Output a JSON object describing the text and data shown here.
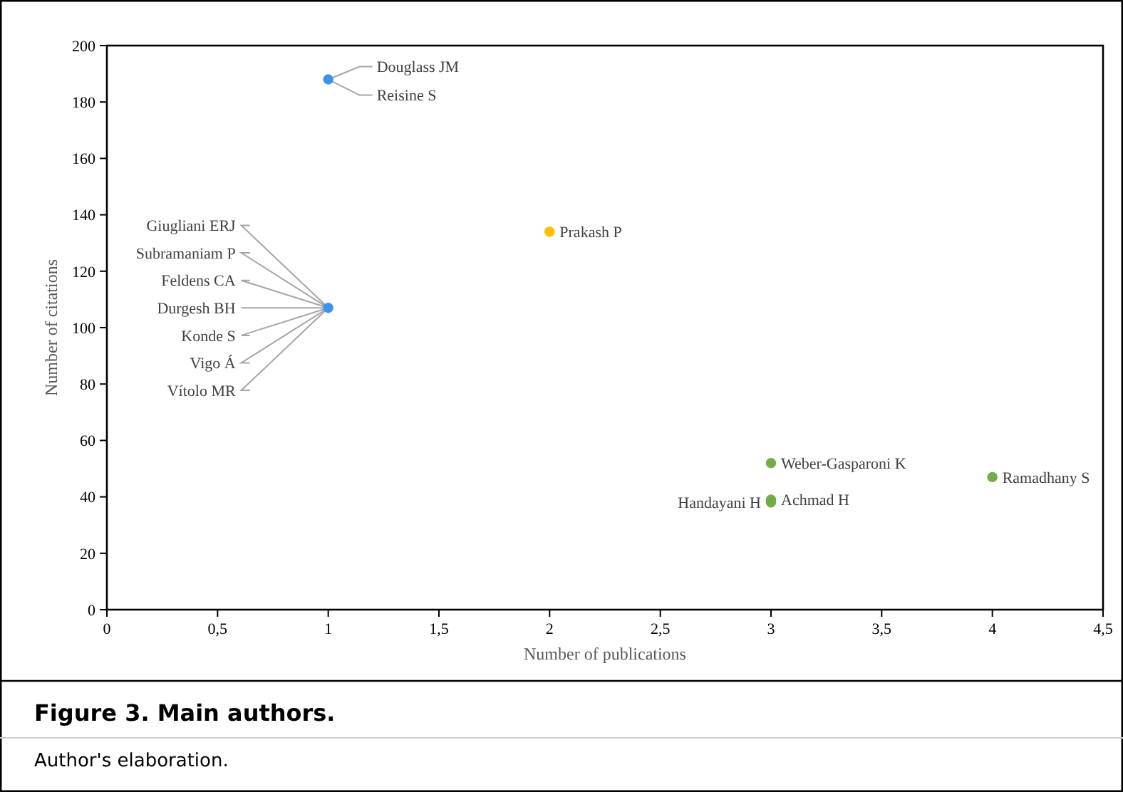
{
  "chart_data": {
    "type": "scatter",
    "title": "Figure 3. Main authors.",
    "xlabel": "Number of publications",
    "ylabel": "Number of citations",
    "xlim": [
      0,
      4.5
    ],
    "xticks": [
      0,
      {
        "value": 0.5,
        "label": "0,5"
      },
      1,
      {
        "value": 1.5,
        "label": "1,5"
      },
      2,
      {
        "value": 2.5,
        "label": "2,5"
      },
      3,
      {
        "value": 3.5,
        "label": "3,5"
      },
      4,
      {
        "value": 4.5,
        "label": "4,5"
      }
    ],
    "ylim": [
      0,
      200
    ],
    "yticks": [
      0,
      20,
      40,
      60,
      80,
      100,
      120,
      140,
      160,
      180,
      200
    ],
    "marker": "circle",
    "series": [
      {
        "color": "#3d93ea",
        "x": [
          1,
          1
        ],
        "values": [
          188,
          107
        ]
      },
      {
        "color": "#ffc000",
        "x": [
          2
        ],
        "values": [
          134
        ]
      },
      {
        "color": "#70ad47",
        "x": [
          3,
          3,
          3,
          4
        ],
        "values": [
          52,
          39,
          38,
          47
        ]
      }
    ],
    "annotations": [
      {
        "text": "Douglass JM",
        "x": 1,
        "y": 188
      },
      {
        "text": "Reisine S",
        "x": 1,
        "y": 188
      },
      {
        "text": "Giugliani ERJ",
        "x": 1,
        "y": 107
      },
      {
        "text": "Subramaniam P",
        "x": 1,
        "y": 107
      },
      {
        "text": "Feldens CA",
        "x": 1,
        "y": 107
      },
      {
        "text": "Durgesh BH",
        "x": 1,
        "y": 107
      },
      {
        "text": "Konde S",
        "x": 1,
        "y": 107
      },
      {
        "text": "Vigo Á",
        "x": 1,
        "y": 107
      },
      {
        "text": "Vítolo MR",
        "x": 1,
        "y": 107
      },
      {
        "text": "Prakash P",
        "x": 2,
        "y": 134
      },
      {
        "text": "Weber-Gasparoni K",
        "x": 3,
        "y": 52
      },
      {
        "text": "Achmad H",
        "x": 3,
        "y": 39
      },
      {
        "text": "Handayani H",
        "x": 3,
        "y": 38
      },
      {
        "text": "Ramadhany S",
        "x": 4,
        "y": 47
      },
      "Author's elaboration."
    ]
  }
}
